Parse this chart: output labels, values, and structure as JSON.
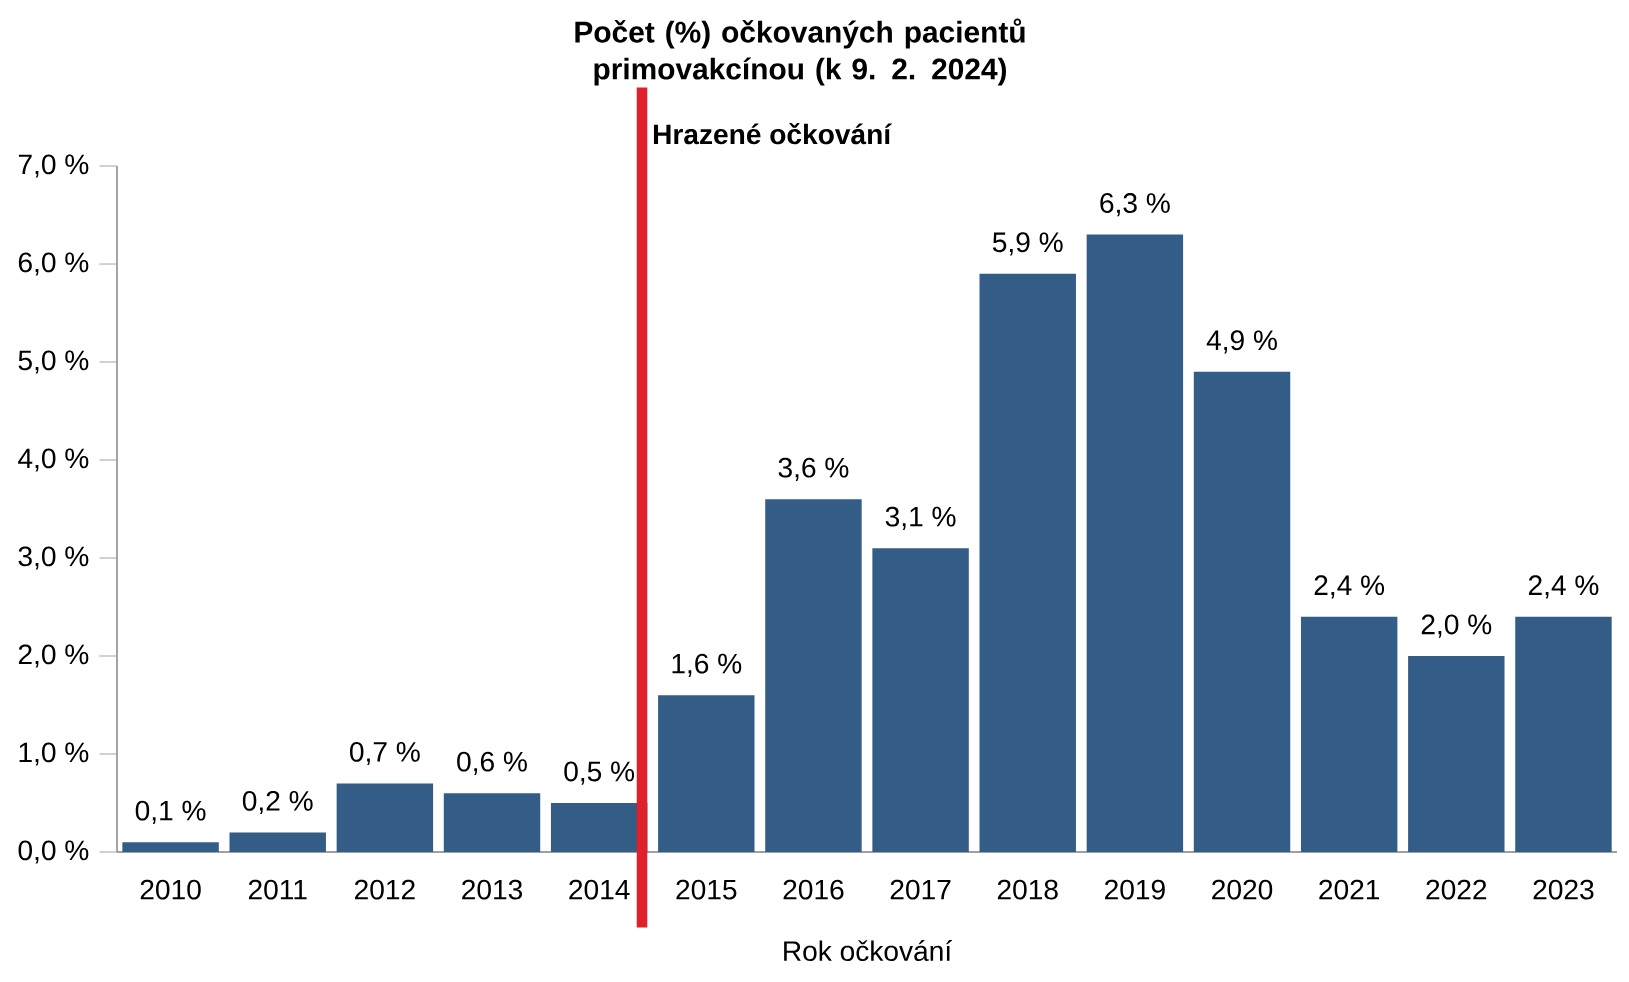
{
  "chart_data": {
    "type": "bar",
    "title": "Počet (%) očkovaných pacientů primovakcínou (k 9. 2. 2024)",
    "xlabel": "Rok očkování",
    "categories": [
      "2010",
      "2011",
      "2012",
      "2013",
      "2014",
      "2015",
      "2016",
      "2017",
      "2018",
      "2019",
      "2020",
      "2021",
      "2022",
      "2023"
    ],
    "values": [
      0.1,
      0.2,
      0.7,
      0.6,
      0.5,
      1.6,
      3.6,
      3.1,
      5.9,
      6.3,
      4.9,
      2.4,
      2.0,
      2.4
    ],
    "value_labels": [
      "0,1 %",
      "0,2 %",
      "0,7 %",
      "0,6 %",
      "0,5 %",
      "1,6 %",
      "3,6 %",
      "3,1 %",
      "5,9 %",
      "6,3 %",
      "4,9 %",
      "2,4 %",
      "2,0 %",
      "2,4 %"
    ],
    "color": "#335c86",
    "ylim": [
      0,
      7
    ],
    "yticks": [
      {
        "value": 0,
        "label": "0,0 %"
      },
      {
        "value": 1,
        "label": "1,0 %"
      },
      {
        "value": 2,
        "label": "2,0 %"
      },
      {
        "value": 3,
        "label": "3,0 %"
      },
      {
        "value": 4,
        "label": "4,0 %"
      },
      {
        "value": 5,
        "label": "5,0 %"
      },
      {
        "value": 6,
        "label": "6,0 %"
      },
      {
        "value": 7,
        "label": "7,0 %"
      }
    ],
    "ref_lines": [
      {
        "axis": "x",
        "value": "2014",
        "label": "Hrazené očkování",
        "color": "#e0202a"
      }
    ],
    "grid": false
  }
}
